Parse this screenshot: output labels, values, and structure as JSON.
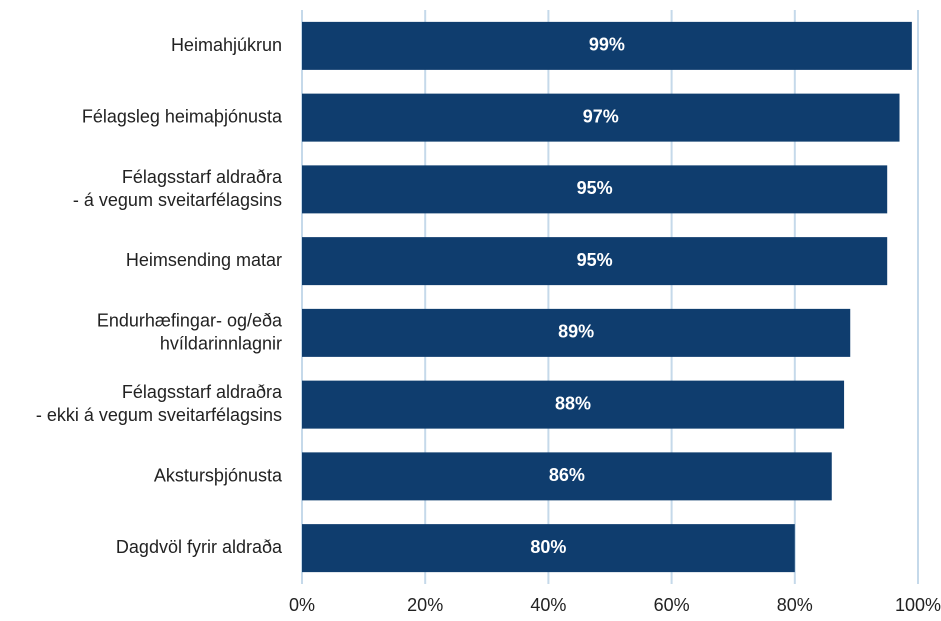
{
  "chart_data": {
    "type": "bar",
    "orientation": "horizontal",
    "categories": [
      "Heimahjúkrun",
      "Félagsleg heimaþjónusta",
      "Félagsstarf aldraðra\n- á vegum sveitarfélagsins",
      "Heimsending matar",
      "Endurhæfingar- og/eða\nhvíldarinnlagnir",
      "Félagsstarf aldraðra\n- ekki á vegum sveitarfélagsins",
      "Akstursþjónusta",
      "Dagdvöl fyrir aldraða"
    ],
    "values": [
      99,
      97,
      95,
      95,
      89,
      88,
      86,
      80
    ],
    "value_labels": [
      "99%",
      "97%",
      "95%",
      "95%",
      "89%",
      "88%",
      "86%",
      "80%"
    ],
    "color": "#0f3d6e",
    "xlim": [
      0,
      100
    ],
    "xticks": [
      {
        "value": 0,
        "label": "0%"
      },
      {
        "value": 20,
        "label": "20%"
      },
      {
        "value": 40,
        "label": "40%"
      },
      {
        "value": 60,
        "label": "60%"
      },
      {
        "value": 80,
        "label": "80%"
      },
      {
        "value": 100,
        "label": "100%"
      }
    ],
    "grid": true
  }
}
